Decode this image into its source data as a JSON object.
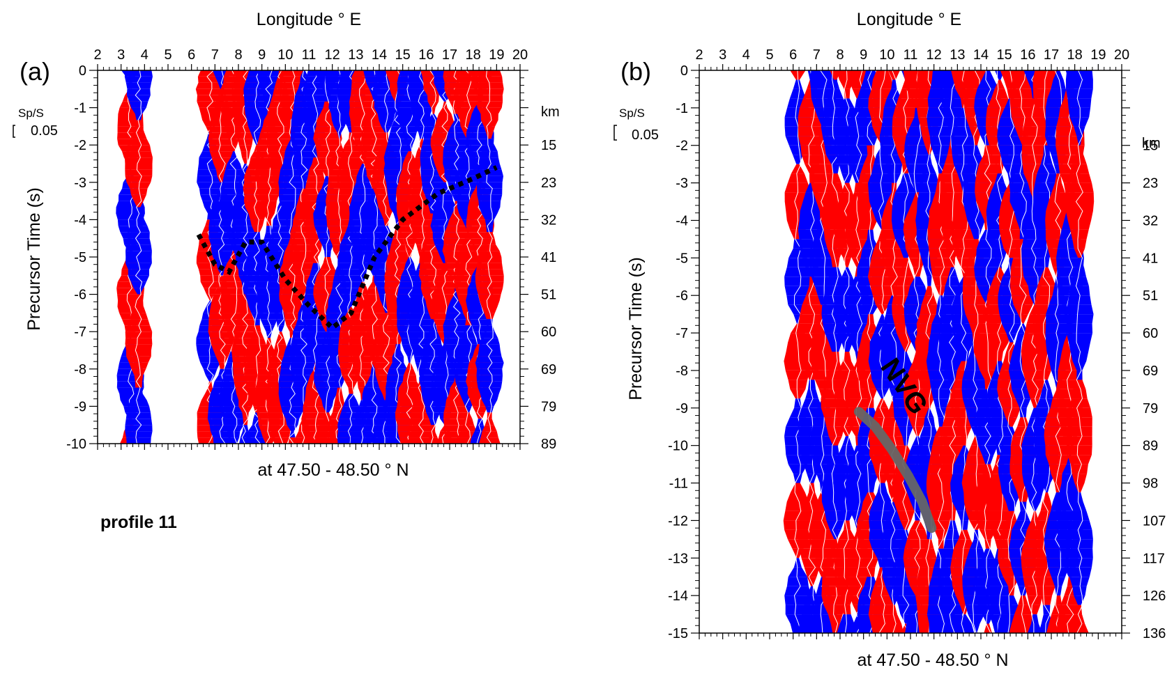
{
  "figure": {
    "profile_label": "profile 11",
    "colors": {
      "positive": "#ff0000",
      "negative": "#0000ff",
      "trace": "#ffffff",
      "picks": "#000000",
      "nvg": "#666666"
    }
  },
  "chart_data": [
    {
      "panel": "(a)",
      "type": "heatmap",
      "title": "",
      "top_xlabel": "Longitude ° E",
      "bottom_xlabel": "at 47.50 - 48.50 ° N",
      "ylabel": "Precursor Time (s)",
      "right_axis_unit": "km",
      "scale_label": "Sp/S",
      "scale_value": "0.05",
      "xlim": [
        2,
        20
      ],
      "ylim": [
        -10,
        0
      ],
      "x_ticks": [
        "2",
        "3",
        "4",
        "5",
        "6",
        "7",
        "8",
        "9",
        "10",
        "11",
        "12",
        "13",
        "14",
        "15",
        "16",
        "17",
        "18",
        "19",
        "20"
      ],
      "y_ticks": [
        {
          "value": 0,
          "label": "0"
        },
        {
          "value": -1,
          "label": "-1"
        },
        {
          "value": -2,
          "label": "-2"
        },
        {
          "value": -3,
          "label": "-3"
        },
        {
          "value": -4,
          "label": "-4"
        },
        {
          "value": -5,
          "label": "-5"
        },
        {
          "value": -6,
          "label": "-6"
        },
        {
          "value": -7,
          "label": "-7"
        },
        {
          "value": -8,
          "label": "-8"
        },
        {
          "value": -9,
          "label": "-9"
        },
        {
          "value": -10,
          "label": "-10"
        }
      ],
      "depth_ticks": [
        {
          "time": -2,
          "label": "15"
        },
        {
          "time": -3,
          "label": "23"
        },
        {
          "time": -4,
          "label": "32"
        },
        {
          "time": -5,
          "label": "41"
        },
        {
          "time": -6,
          "label": "51"
        },
        {
          "time": -7,
          "label": "60"
        },
        {
          "time": -8,
          "label": "69"
        },
        {
          "time": -9,
          "label": "79"
        },
        {
          "time": -10,
          "label": "89"
        }
      ],
      "traces": [
        {
          "lon": 3.4,
          "sign": -1
        },
        {
          "lon": 3.75,
          "sign": 1
        },
        {
          "lon": 6.8,
          "sign": 1
        },
        {
          "lon": 7.3,
          "sign": -1
        },
        {
          "lon": 7.8,
          "sign": 1
        },
        {
          "lon": 8.3,
          "sign": 1
        },
        {
          "lon": 8.8,
          "sign": 1
        },
        {
          "lon": 9.3,
          "sign": -1
        },
        {
          "lon": 9.8,
          "sign": 1
        },
        {
          "lon": 10.3,
          "sign": 1
        },
        {
          "lon": 10.8,
          "sign": -1
        },
        {
          "lon": 11.3,
          "sign": 1
        },
        {
          "lon": 11.8,
          "sign": 1
        },
        {
          "lon": 12.3,
          "sign": -1
        },
        {
          "lon": 12.8,
          "sign": 1
        },
        {
          "lon": 13.3,
          "sign": -1
        },
        {
          "lon": 13.8,
          "sign": 1
        },
        {
          "lon": 14.3,
          "sign": -1
        },
        {
          "lon": 14.8,
          "sign": 1
        },
        {
          "lon": 15.3,
          "sign": -1
        },
        {
          "lon": 15.8,
          "sign": 1
        },
        {
          "lon": 16.3,
          "sign": -1
        },
        {
          "lon": 16.8,
          "sign": 1
        },
        {
          "lon": 17.3,
          "sign": -1
        },
        {
          "lon": 17.8,
          "sign": 1
        },
        {
          "lon": 18.3,
          "sign": -1
        },
        {
          "lon": 18.7,
          "sign": 1
        }
      ],
      "picked_interface": [
        {
          "lon": 6.3,
          "t": -4.4
        },
        {
          "lon": 7.0,
          "t": -5.2
        },
        {
          "lon": 7.6,
          "t": -5.4
        },
        {
          "lon": 8.3,
          "t": -4.6
        },
        {
          "lon": 9.0,
          "t": -4.6
        },
        {
          "lon": 10.0,
          "t": -5.6
        },
        {
          "lon": 11.0,
          "t": -6.3
        },
        {
          "lon": 12.0,
          "t": -6.9
        },
        {
          "lon": 12.8,
          "t": -6.5
        },
        {
          "lon": 13.8,
          "t": -5.0
        },
        {
          "lon": 15.0,
          "t": -4.0
        },
        {
          "lon": 16.5,
          "t": -3.3
        },
        {
          "lon": 18.0,
          "t": -2.9
        },
        {
          "lon": 19.0,
          "t": -2.6
        }
      ]
    },
    {
      "panel": "(b)",
      "type": "heatmap",
      "title": "",
      "top_xlabel": "Longitude ° E",
      "bottom_xlabel": "at 47.50 - 48.50 ° N",
      "ylabel": "Precursor Time (s)",
      "right_axis_unit": "km",
      "scale_label": "Sp/S",
      "scale_value": "0.05",
      "annotation": "NVG",
      "xlim": [
        2,
        20
      ],
      "ylim": [
        -15,
        0
      ],
      "x_ticks": [
        "2",
        "3",
        "4",
        "5",
        "6",
        "7",
        "8",
        "9",
        "10",
        "11",
        "12",
        "13",
        "14",
        "15",
        "16",
        "17",
        "18",
        "19",
        "20"
      ],
      "y_ticks": [
        {
          "value": 0,
          "label": "0"
        },
        {
          "value": -1,
          "label": "-1"
        },
        {
          "value": -2,
          "label": "-2"
        },
        {
          "value": -3,
          "label": "-3"
        },
        {
          "value": -4,
          "label": "-4"
        },
        {
          "value": -5,
          "label": "-5"
        },
        {
          "value": -6,
          "label": "-6"
        },
        {
          "value": -7,
          "label": "-7"
        },
        {
          "value": -8,
          "label": "-8"
        },
        {
          "value": -9,
          "label": "-9"
        },
        {
          "value": -10,
          "label": "-10"
        },
        {
          "value": -11,
          "label": "-11"
        },
        {
          "value": -12,
          "label": "-12"
        },
        {
          "value": -13,
          "label": "-13"
        },
        {
          "value": -14,
          "label": "-14"
        },
        {
          "value": -15,
          "label": "-15"
        }
      ],
      "depth_ticks": [
        {
          "time": -2,
          "label": "15"
        },
        {
          "time": -3,
          "label": "23"
        },
        {
          "time": -4,
          "label": "32"
        },
        {
          "time": -5,
          "label": "41"
        },
        {
          "time": -6,
          "label": "51"
        },
        {
          "time": -7,
          "label": "60"
        },
        {
          "time": -8,
          "label": "69"
        },
        {
          "time": -9,
          "label": "79"
        },
        {
          "time": -10,
          "label": "89"
        },
        {
          "time": -11,
          "label": "98"
        },
        {
          "time": -12,
          "label": "107"
        },
        {
          "time": -13,
          "label": "117"
        },
        {
          "time": -14,
          "label": "126"
        },
        {
          "time": -15,
          "label": "136"
        }
      ],
      "traces": [
        {
          "lon": 6.2,
          "sign": 1
        },
        {
          "lon": 6.8,
          "sign": -1
        },
        {
          "lon": 7.3,
          "sign": 1
        },
        {
          "lon": 7.8,
          "sign": 1
        },
        {
          "lon": 8.3,
          "sign": -1
        },
        {
          "lon": 8.8,
          "sign": 1
        },
        {
          "lon": 9.3,
          "sign": 1
        },
        {
          "lon": 9.8,
          "sign": -1
        },
        {
          "lon": 10.3,
          "sign": 1
        },
        {
          "lon": 10.8,
          "sign": 1
        },
        {
          "lon": 11.3,
          "sign": -1
        },
        {
          "lon": 11.8,
          "sign": 1
        },
        {
          "lon": 12.3,
          "sign": 1
        },
        {
          "lon": 12.8,
          "sign": -1
        },
        {
          "lon": 13.3,
          "sign": 1
        },
        {
          "lon": 13.8,
          "sign": -1
        },
        {
          "lon": 14.3,
          "sign": 1
        },
        {
          "lon": 14.8,
          "sign": 1
        },
        {
          "lon": 15.3,
          "sign": -1
        },
        {
          "lon": 15.8,
          "sign": 1
        },
        {
          "lon": 16.3,
          "sign": 1
        },
        {
          "lon": 16.8,
          "sign": -1
        },
        {
          "lon": 17.3,
          "sign": 1
        },
        {
          "lon": 17.8,
          "sign": -1
        },
        {
          "lon": 18.2,
          "sign": 1
        }
      ],
      "nvg_band": [
        {
          "lon": 8.8,
          "t": -9.1
        },
        {
          "lon": 9.5,
          "t": -9.5
        },
        {
          "lon": 10.2,
          "t": -10.1
        },
        {
          "lon": 10.9,
          "t": -10.8
        },
        {
          "lon": 11.5,
          "t": -11.5
        },
        {
          "lon": 11.9,
          "t": -12.2
        }
      ]
    }
  ]
}
